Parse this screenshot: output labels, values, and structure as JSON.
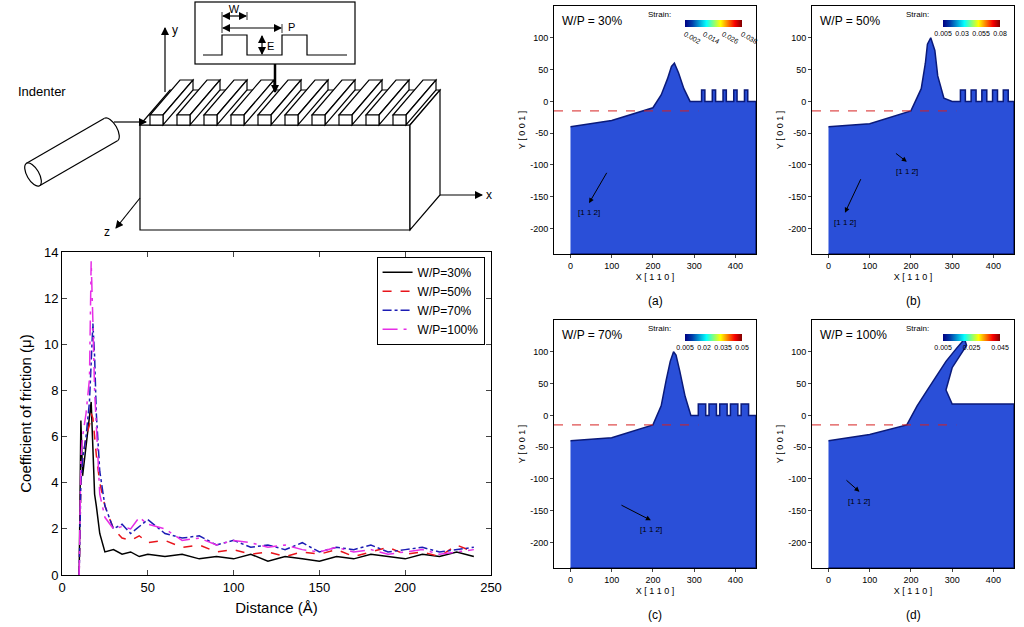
{
  "schematic": {
    "indenter": "Indenter",
    "width": "W",
    "period": "P",
    "depth": "E",
    "x_axis": "x",
    "y_axis": "y",
    "z_axis": "z"
  },
  "chart_data": [
    {
      "type": "line",
      "x_label": "Distance (Å)",
      "y_label": "Coefficient of friction (μ)",
      "xlim": [
        0,
        250
      ],
      "xticks": [
        0,
        50,
        100,
        150,
        200,
        250
      ],
      "ylim": [
        0,
        14
      ],
      "yticks": [
        0,
        2,
        4,
        6,
        8,
        10,
        12,
        14
      ],
      "legend": "top right",
      "x": [
        10,
        11,
        12,
        14,
        16,
        17,
        18,
        19,
        20,
        22,
        25,
        30,
        35,
        40,
        45,
        50,
        60,
        70,
        80,
        90,
        100,
        110,
        120,
        130,
        140,
        150,
        160,
        170,
        180,
        190,
        200,
        210,
        220,
        230,
        240
      ],
      "series": [
        {
          "name": "W/P=30%",
          "color": "#000000",
          "line_style": "solid",
          "values": [
            0,
            6.7,
            4.3,
            5.5,
            6.8,
            7.5,
            5.5,
            3.5,
            3.0,
            1.8,
            1.0,
            1.1,
            0.9,
            1.0,
            0.8,
            0.9,
            0.8,
            0.9,
            0.7,
            0.8,
            0.7,
            0.9,
            0.6,
            0.8,
            0.7,
            0.6,
            0.8,
            0.7,
            0.9,
            0.8,
            0.7,
            0.9,
            0.8,
            1.0,
            0.8
          ]
        },
        {
          "name": "W/P=50%",
          "color": "#e8141b",
          "line_style": "dash",
          "values": [
            0,
            4.0,
            5.0,
            6.0,
            6.5,
            7.0,
            6.8,
            6.0,
            5.2,
            4.0,
            3.0,
            2.0,
            1.6,
            1.5,
            1.7,
            1.4,
            1.5,
            1.2,
            1.3,
            1.0,
            1.1,
            0.9,
            1.0,
            0.8,
            1.0,
            0.9,
            1.1,
            0.8,
            1.0,
            1.2,
            0.9,
            1.0,
            0.8,
            1.3,
            1.0
          ]
        },
        {
          "name": "W/P=70%",
          "color": "#1c1cb4",
          "line_style": "dashdot",
          "values": [
            0,
            4.0,
            5.0,
            6.0,
            7.5,
            9.0,
            10.9,
            9.5,
            7.0,
            4.5,
            3.0,
            2.0,
            2.2,
            1.8,
            2.1,
            2.4,
            1.8,
            1.6,
            1.7,
            1.3,
            1.5,
            1.2,
            1.3,
            1.1,
            1.4,
            1.0,
            1.2,
            1.1,
            1.3,
            1.0,
            1.1,
            1.2,
            1.0,
            1.1,
            1.2
          ]
        },
        {
          "name": "W/P=100%",
          "color": "#e62ee6",
          "line_style": "longdashdot",
          "values": [
            0,
            5.0,
            6.0,
            7.0,
            8.5,
            13.6,
            11.0,
            8.0,
            6.5,
            3.5,
            2.5,
            2.0,
            2.1,
            2.0,
            2.5,
            2.2,
            2.0,
            1.5,
            1.6,
            1.3,
            1.5,
            1.4,
            1.2,
            1.3,
            1.1,
            1.0,
            1.2,
            1.0,
            1.1,
            0.9,
            1.0,
            1.1,
            0.9,
            1.0,
            1.1
          ]
        }
      ]
    },
    {
      "type": "area",
      "title": "W/P = 30%",
      "panel_label": "(a)",
      "x_label": "X [ 1 1 0 ]",
      "y_label": "Y [ 0 0 1 ]",
      "xlim": [
        -40,
        450
      ],
      "xticks": [
        0,
        100,
        200,
        300,
        400
      ],
      "ylim": [
        -240,
        150
      ],
      "yticks": [
        -200,
        -150,
        -100,
        -50,
        0,
        50,
        100
      ],
      "color": "#2a4fd8",
      "x": [
        0,
        100,
        200,
        220,
        235,
        245,
        252,
        262,
        275,
        290,
        310,
        318,
        318,
        326,
        326,
        344,
        344,
        352,
        352,
        370,
        370,
        378,
        378,
        396,
        396,
        404,
        404,
        422,
        422,
        430,
        430,
        450
      ],
      "values": [
        -40,
        -30,
        -10,
        10,
        35,
        55,
        60,
        45,
        20,
        0,
        0,
        0,
        18,
        18,
        0,
        0,
        18,
        18,
        0,
        0,
        18,
        18,
        0,
        0,
        18,
        18,
        0,
        0,
        18,
        18,
        0,
        0
      ],
      "reference_line": {
        "y": -15,
        "x": [
          -40,
          310
        ]
      },
      "color_bar": {
        "title": "Strain:",
        "range": [
          0.002,
          0.038
        ],
        "ticks": [
          0.002,
          0.014,
          0.026,
          0.038
        ]
      },
      "annotations": [
        {
          "text": "[1 1 2]",
          "from": [
            90,
            -110
          ],
          "to": [
            45,
            -160
          ]
        }
      ]
    },
    {
      "type": "area",
      "title": "W/P = 50%",
      "panel_label": "(b)",
      "x_label": "X [ 1 1 0 ]",
      "y_label": "Y [ 0 0 1 ]",
      "xlim": [
        -40,
        450
      ],
      "xticks": [
        0,
        100,
        200,
        300,
        400
      ],
      "ylim": [
        -240,
        150
      ],
      "yticks": [
        -200,
        -150,
        -100,
        -50,
        0,
        50,
        100
      ],
      "color": "#2a4fd8",
      "x": [
        0,
        100,
        200,
        225,
        235,
        240,
        248,
        258,
        265,
        280,
        300,
        320,
        320,
        332,
        332,
        346,
        346,
        358,
        358,
        372,
        372,
        384,
        384,
        398,
        398,
        410,
        410,
        424,
        424,
        436,
        436,
        450
      ],
      "values": [
        -40,
        -35,
        -15,
        20,
        60,
        90,
        100,
        80,
        40,
        5,
        0,
        0,
        18,
        18,
        0,
        0,
        18,
        18,
        0,
        0,
        18,
        18,
        0,
        0,
        18,
        18,
        0,
        0,
        18,
        18,
        0,
        0
      ],
      "reference_line": {
        "y": -15,
        "x": [
          -40,
          310
        ]
      },
      "color_bar": {
        "title": "Strain:",
        "range": [
          0.005,
          0.08
        ],
        "ticks": [
          0.005,
          0.03,
          0.055,
          0.08
        ]
      },
      "annotations": [
        {
          "text": "[1 1 2]",
          "from": [
            80,
            -120
          ],
          "to": [
            40,
            -175
          ]
        },
        {
          "text": "[1 1 2̄]",
          "from": [
            160,
            -80
          ],
          "to": [
            190,
            -95
          ]
        }
      ]
    },
    {
      "type": "area",
      "title": "W/P = 70%",
      "panel_label": "(c)",
      "x_label": "X [ 1 1 0 ]",
      "y_label": "Y [ 0 0 1 ]",
      "xlim": [
        -40,
        450
      ],
      "xticks": [
        0,
        100,
        200,
        300,
        400
      ],
      "ylim": [
        -240,
        150
      ],
      "yticks": [
        -200,
        -150,
        -100,
        -50,
        0,
        50,
        100
      ],
      "color": "#2a4fd8",
      "x": [
        0,
        100,
        200,
        220,
        232,
        242,
        250,
        256,
        265,
        278,
        292,
        310,
        310,
        328,
        328,
        336,
        336,
        354,
        354,
        362,
        362,
        380,
        380,
        388,
        388,
        406,
        406,
        414,
        414,
        432,
        432,
        450
      ],
      "values": [
        -40,
        -35,
        -15,
        15,
        55,
        85,
        100,
        95,
        70,
        30,
        0,
        0,
        18,
        18,
        0,
        0,
        18,
        18,
        0,
        0,
        18,
        18,
        0,
        0,
        18,
        18,
        0,
        0,
        18,
        18,
        0,
        0
      ],
      "reference_line": {
        "y": -15,
        "x": [
          -40,
          310
        ]
      },
      "color_bar": {
        "title": "Strain:",
        "range": [
          0.005,
          0.05
        ],
        "ticks": [
          0.005,
          0.02,
          0.035,
          0.05
        ]
      },
      "annotations": [
        {
          "text": "[1 1 2̄]",
          "from": [
            120,
            -140
          ],
          "to": [
            195,
            -165
          ]
        }
      ]
    },
    {
      "type": "area",
      "title": "W/P = 100%",
      "panel_label": "(d)",
      "x_label": "X [ 1 1 0 ]",
      "y_label": "Y [ 0 0 1 ]",
      "xlim": [
        -40,
        450
      ],
      "xticks": [
        0,
        100,
        200,
        300,
        400
      ],
      "ylim": [
        -240,
        150
      ],
      "yticks": [
        -200,
        -150,
        -100,
        -50,
        0,
        50,
        100
      ],
      "color": "#2a4fd8",
      "x": [
        0,
        100,
        190,
        215,
        240,
        260,
        285,
        310,
        330,
        335,
        320,
        300,
        285,
        300,
        310,
        450
      ],
      "values": [
        -40,
        -30,
        -15,
        15,
        40,
        60,
        85,
        105,
        120,
        110,
        95,
        75,
        40,
        18,
        18,
        18
      ],
      "reference_line": {
        "y": -15,
        "x": [
          -40,
          310
        ]
      },
      "color_bar": {
        "title": "Strain:",
        "range": [
          0.005,
          0.045
        ],
        "ticks": [
          0.005,
          0.025,
          0.045
        ]
      },
      "annotations": [
        {
          "text": "[1 1 2̄]",
          "from": [
            40,
            -100
          ],
          "to": [
            75,
            -120
          ]
        }
      ]
    }
  ]
}
